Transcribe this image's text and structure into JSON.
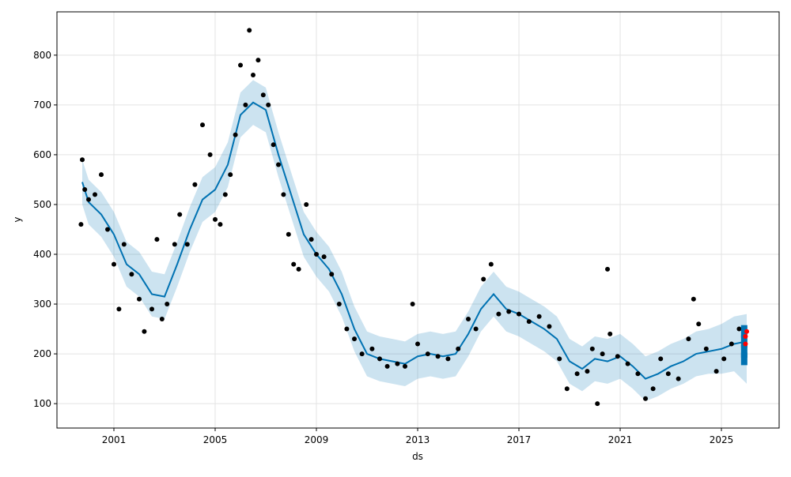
{
  "chart_data": {
    "type": "line",
    "xlabel": "ds",
    "ylabel": "y",
    "xlim": [
      1998.75,
      2027.28
    ],
    "ylim": [
      51,
      887
    ],
    "xticks": [
      2001,
      2005,
      2009,
      2013,
      2017,
      2021,
      2025
    ],
    "yticks": [
      100,
      200,
      300,
      400,
      500,
      600,
      700,
      800
    ],
    "grid": true,
    "series": [
      {
        "style": "band",
        "color": "#0072B2",
        "x": [
          1999.75,
          2000,
          2000.5,
          2001,
          2001.5,
          2002,
          2002.5,
          2003,
          2003.5,
          2004,
          2004.5,
          2005,
          2005.5,
          2006,
          2006.5,
          2007,
          2007.5,
          2008,
          2008.5,
          2009,
          2009.5,
          2010,
          2010.5,
          2011,
          2011.5,
          2012,
          2012.5,
          2013,
          2013.5,
          2014,
          2014.5,
          2015,
          2015.5,
          2016,
          2016.5,
          2017,
          2017.5,
          2018,
          2018.5,
          2019,
          2019.5,
          2020,
          2020.5,
          2021,
          2021.5,
          2022,
          2022.5,
          2023,
          2023.5,
          2024,
          2024.5,
          2025,
          2025.5,
          2026
        ],
        "lower": [
          500,
          460,
          435,
          395,
          335,
          315,
          275,
          270,
          335,
          405,
          465,
          485,
          535,
          635,
          660,
          645,
          555,
          475,
          395,
          355,
          325,
          275,
          205,
          155,
          145,
          140,
          135,
          150,
          155,
          150,
          155,
          195,
          245,
          275,
          245,
          235,
          220,
          205,
          185,
          140,
          125,
          145,
          140,
          150,
          130,
          105,
          115,
          130,
          140,
          155,
          160,
          160,
          165,
          140
        ],
        "upper": [
          590,
          550,
          525,
          485,
          425,
          405,
          365,
          360,
          425,
          495,
          555,
          575,
          625,
          725,
          750,
          735,
          645,
          565,
          485,
          445,
          415,
          365,
          295,
          245,
          235,
          230,
          225,
          240,
          245,
          240,
          245,
          285,
          335,
          365,
          335,
          325,
          310,
          295,
          275,
          230,
          215,
          235,
          230,
          240,
          220,
          195,
          205,
          220,
          230,
          245,
          250,
          260,
          275,
          280
        ]
      },
      {
        "style": "line",
        "color": "#0072B2",
        "x": [
          1999.75,
          2000,
          2000.5,
          2001,
          2001.5,
          2002,
          2002.5,
          2003,
          2003.5,
          2004,
          2004.5,
          2005,
          2005.5,
          2006,
          2006.5,
          2007,
          2007.5,
          2008,
          2008.5,
          2009,
          2009.5,
          2010,
          2010.5,
          2011,
          2011.5,
          2012,
          2012.5,
          2013,
          2013.5,
          2014,
          2014.5,
          2015,
          2015.5,
          2016,
          2016.5,
          2017,
          2017.5,
          2018,
          2018.5,
          2019,
          2019.5,
          2020,
          2020.5,
          2021,
          2021.5,
          2022,
          2022.5,
          2023,
          2023.5,
          2024,
          2024.5,
          2025,
          2025.5,
          2026
        ],
        "values": [
          545,
          505,
          480,
          440,
          380,
          360,
          320,
          315,
          380,
          450,
          510,
          530,
          580,
          680,
          705,
          690,
          600,
          520,
          440,
          400,
          370,
          320,
          250,
          200,
          190,
          185,
          180,
          195,
          200,
          195,
          200,
          240,
          290,
          320,
          290,
          280,
          265,
          250,
          230,
          185,
          170,
          190,
          185,
          195,
          175,
          150,
          160,
          175,
          185,
          200,
          205,
          210,
          220,
          225
        ]
      },
      {
        "style": "points",
        "color": "#000000",
        "x": [
          1999.7,
          1999.75,
          1999.85,
          2000,
          2000.25,
          2000.5,
          2000.75,
          2001,
          2001.2,
          2001.4,
          2001.7,
          2002,
          2002.2,
          2002.5,
          2002.7,
          2002.9,
          2003.1,
          2003.4,
          2003.6,
          2003.9,
          2004.2,
          2004.5,
          2004.8,
          2005,
          2005.2,
          2005.4,
          2005.6,
          2005.8,
          2006,
          2006.2,
          2006.35,
          2006.5,
          2006.7,
          2006.9,
          2007.1,
          2007.3,
          2007.5,
          2007.7,
          2007.9,
          2008.1,
          2008.3,
          2008.6,
          2008.8,
          2009,
          2009.3,
          2009.6,
          2009.9,
          2010.2,
          2010.5,
          2010.8,
          2011.2,
          2011.5,
          2011.8,
          2012.2,
          2012.5,
          2012.8,
          2013,
          2013.4,
          2013.8,
          2014.2,
          2014.6,
          2015,
          2015.3,
          2015.6,
          2015.9,
          2016.2,
          2016.6,
          2017,
          2017.4,
          2017.8,
          2018.2,
          2018.6,
          2018.9,
          2019.3,
          2019.7,
          2019.9,
          2020.1,
          2020.3,
          2020.5,
          2020.6,
          2020.9,
          2021.3,
          2021.7,
          2022,
          2022.3,
          2022.6,
          2022.9,
          2023.3,
          2023.7,
          2023.9,
          2024.1,
          2024.4,
          2024.8,
          2025.1,
          2025.4,
          2025.7
        ],
        "values": [
          460,
          590,
          530,
          510,
          520,
          560,
          450,
          380,
          290,
          420,
          360,
          310,
          245,
          290,
          430,
          270,
          300,
          420,
          480,
          420,
          540,
          660,
          600,
          470,
          460,
          520,
          560,
          640,
          780,
          700,
          850,
          760,
          790,
          720,
          700,
          620,
          580,
          520,
          440,
          380,
          370,
          500,
          430,
          400,
          395,
          360,
          300,
          250,
          230,
          200,
          210,
          190,
          175,
          180,
          175,
          300,
          220,
          200,
          195,
          190,
          210,
          270,
          250,
          350,
          380,
          280,
          285,
          280,
          265,
          275,
          255,
          190,
          130,
          160,
          165,
          210,
          100,
          200,
          370,
          240,
          195,
          180,
          160,
          110,
          130,
          190,
          160,
          150,
          230,
          310,
          260,
          210,
          165,
          190,
          220,
          250
        ]
      },
      {
        "style": "squares",
        "color": "#0072B2",
        "x": [
          2025.9,
          2025.9,
          2025.9,
          2025.9
        ],
        "values": [
          190,
          205,
          225,
          245
        ]
      },
      {
        "style": "points",
        "color": "#ff0000",
        "x": [
          2025.95,
          2026,
          2025.95
        ],
        "values": [
          220,
          245,
          235
        ]
      }
    ]
  }
}
